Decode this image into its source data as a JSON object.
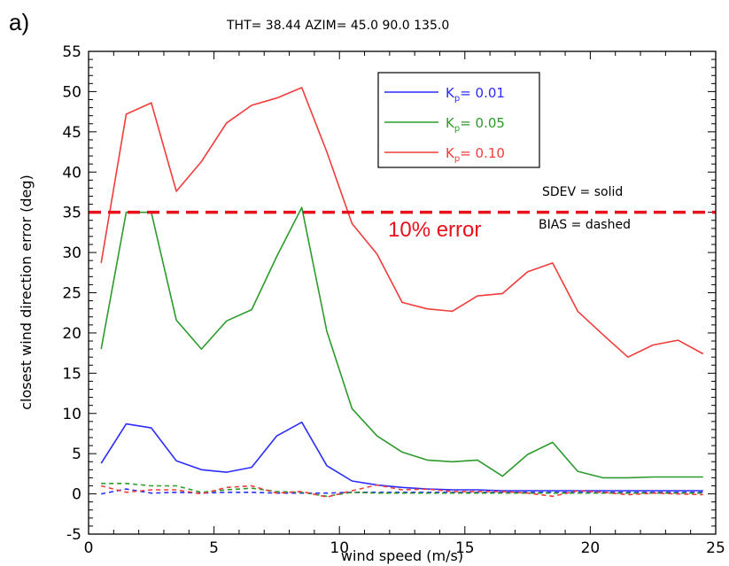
{
  "panel_label": "a)",
  "header": "THT=  38.44   AZIM=   45.0   90.0  135.0",
  "notes": {
    "sdev": "SDEV = solid",
    "bias": "BIAS = dashed"
  },
  "chart_data": {
    "type": "line",
    "title": "",
    "xlabel": "wind speed (m/s)",
    "ylabel": "closest wind direction error (deg)",
    "xlim": [
      0,
      25
    ],
    "ylim": [
      -5,
      55
    ],
    "x_ticks": [
      0,
      5,
      10,
      15,
      20,
      25
    ],
    "y_ticks": [
      -5,
      0,
      5,
      10,
      15,
      20,
      25,
      30,
      35,
      40,
      45,
      50,
      55
    ],
    "grid": false,
    "legend_position": "top-center",
    "series": [
      {
        "name": "K_p= 0.01",
        "legend_label": "= 0.01",
        "legend_sub": "p",
        "color": "#2b2bff",
        "style": "solid",
        "x": [
          0.5,
          1.5,
          2.5,
          3.5,
          4.5,
          5.5,
          6.5,
          7.5,
          8.5,
          9.5,
          10.5,
          11.5,
          12.5,
          13.5,
          14.5,
          15.5,
          16.5,
          17.5,
          18.5,
          19.5,
          20.5,
          21.5,
          22.5,
          23.5,
          24.5
        ],
        "y": [
          3.8,
          8.7,
          8.2,
          4.1,
          3.0,
          2.7,
          3.3,
          7.2,
          8.9,
          3.5,
          1.6,
          1.1,
          0.8,
          0.6,
          0.5,
          0.5,
          0.4,
          0.4,
          0.4,
          0.4,
          0.4,
          0.4,
          0.4,
          0.4,
          0.4
        ]
      },
      {
        "name": "K_p= 0.05",
        "legend_label": "= 0.05",
        "legend_sub": "p",
        "color": "#2e9a2e",
        "style": "solid",
        "x": [
          0.5,
          1.5,
          2.5,
          3.5,
          4.5,
          5.5,
          6.5,
          7.5,
          8.5,
          9.5,
          10.5,
          11.5,
          12.5,
          13.5,
          14.5,
          15.5,
          16.5,
          17.5,
          18.5,
          19.5,
          20.5,
          21.5,
          22.5,
          23.5,
          24.5
        ],
        "y": [
          18.0,
          35.0,
          35.0,
          21.6,
          18.0,
          21.5,
          22.9,
          29.5,
          35.6,
          20.2,
          10.6,
          7.2,
          5.2,
          4.2,
          4.0,
          4.2,
          2.2,
          4.9,
          6.4,
          2.8,
          2.0,
          2.0,
          2.1,
          2.1,
          2.1
        ]
      },
      {
        "name": "K_p= 0.10",
        "legend_label": "= 0.10",
        "legend_sub": "p",
        "color": "#f03c3c",
        "style": "solid",
        "x": [
          0.5,
          1.5,
          2.5,
          3.5,
          4.5,
          5.5,
          6.5,
          7.5,
          8.5,
          9.5,
          10.5,
          11.5,
          12.5,
          13.5,
          14.5,
          15.5,
          16.5,
          17.5,
          18.5,
          19.5,
          20.5,
          21.5,
          22.5,
          23.5,
          24.5
        ],
        "y": [
          28.7,
          47.2,
          48.6,
          37.6,
          41.3,
          46.1,
          48.3,
          49.2,
          50.5,
          42.5,
          33.6,
          29.8,
          23.8,
          23.0,
          22.7,
          24.6,
          24.9,
          27.6,
          28.7,
          22.7,
          19.8,
          17.0,
          18.5,
          19.1,
          17.4
        ]
      },
      {
        "color": "#2b2bff",
        "style": "dashed",
        "x": [
          0.5,
          1.5,
          2.5,
          3.5,
          4.5,
          5.5,
          6.5,
          7.5,
          8.5,
          9.5,
          10.5,
          11.5,
          12.5,
          13.5,
          14.5,
          15.5,
          16.5,
          17.5,
          18.5,
          19.5,
          20.5,
          21.5,
          22.5,
          23.5,
          24.5
        ],
        "y": [
          0.0,
          0.6,
          0.1,
          0.2,
          0.1,
          0.2,
          0.2,
          0.1,
          0.1,
          0.1,
          0.2,
          0.2,
          0.2,
          0.2,
          0.2,
          0.2,
          0.2,
          0.2,
          0.2,
          0.2,
          0.2,
          0.2,
          0.2,
          0.2,
          0.2
        ]
      },
      {
        "color": "#2e9a2e",
        "style": "dashed",
        "x": [
          0.5,
          1.5,
          2.5,
          3.5,
          4.5,
          5.5,
          6.5,
          7.5,
          8.5,
          9.5,
          10.5,
          11.5,
          12.5,
          13.5,
          14.5,
          15.5,
          16.5,
          17.5,
          18.5,
          19.5,
          20.5,
          21.5,
          22.5,
          23.5,
          24.5
        ],
        "y": [
          1.3,
          1.3,
          1.0,
          1.0,
          0.2,
          0.5,
          0.7,
          0.3,
          0.2,
          -0.3,
          0.2,
          0.1,
          0.1,
          0.1,
          0.1,
          0.1,
          0.1,
          0.1,
          0.1,
          0.1,
          0.1,
          0.1,
          0.1,
          0.1,
          0.1
        ]
      },
      {
        "color": "#f03c3c",
        "style": "dashed",
        "x": [
          0.5,
          1.5,
          2.5,
          3.5,
          4.5,
          5.5,
          6.5,
          7.5,
          8.5,
          9.5,
          10.5,
          11.5,
          12.5,
          13.5,
          14.5,
          15.5,
          16.5,
          17.5,
          18.5,
          19.5,
          20.5,
          21.5,
          22.5,
          23.5,
          24.5
        ],
        "y": [
          1.0,
          0.2,
          0.5,
          0.5,
          0.0,
          0.8,
          1.0,
          0.1,
          0.3,
          -0.4,
          0.4,
          1.1,
          0.5,
          0.6,
          0.3,
          0.3,
          0.3,
          0.1,
          -0.3,
          0.4,
          0.2,
          -0.1,
          0.1,
          0.0,
          -0.1
        ]
      }
    ],
    "reference_line": {
      "y": 35,
      "color": "#e8111b",
      "style": "dashed",
      "label": "10% error"
    }
  }
}
